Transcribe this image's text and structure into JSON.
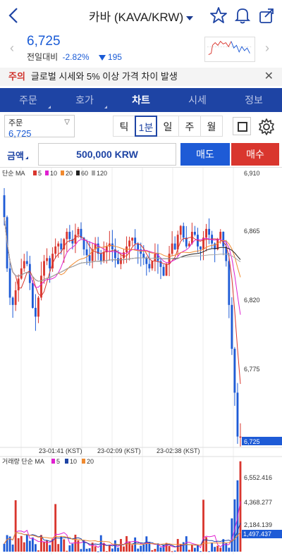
{
  "header": {
    "title": "카바 (KAVA/KRW)"
  },
  "quote": {
    "price": "6,725",
    "change_label": "전일대비",
    "change_pct": "-2.82%",
    "change_amount": "195"
  },
  "notice": {
    "label": "주의",
    "text": "글로벌 시세와 5% 이상 가격 차이 발생"
  },
  "tabs": [
    {
      "label": "주문"
    },
    {
      "label": "호가"
    },
    {
      "label": "차트"
    },
    {
      "label": "시세"
    },
    {
      "label": "정보"
    }
  ],
  "order_select": {
    "label": "주문",
    "value": "6,725"
  },
  "timeframes": [
    "틱",
    "1분",
    "일",
    "주",
    "월"
  ],
  "amount": {
    "label": "금액",
    "value": "500,000 KRW"
  },
  "buttons": {
    "sell": "매도",
    "buy": "매수"
  },
  "colors": {
    "up": "#d9362e",
    "down": "#1e5bd6",
    "brand": "#1e44a4"
  },
  "chart_data": [
    {
      "type": "candlestick",
      "legend": {
        "prefix": "단순 MA",
        "items": [
          {
            "name": "5",
            "color": "#d9362e"
          },
          {
            "name": "10",
            "color": "#e020d0"
          },
          {
            "name": "20",
            "color": "#f08a30"
          },
          {
            "name": "60",
            "color": "#222222"
          },
          {
            "name": "120",
            "color": "#aaaaaa"
          }
        ]
      },
      "y_ticks": [
        "6,910",
        "6,865",
        "6,820",
        "6,775",
        "6,725"
      ],
      "last_price_label": "6,725",
      "x_ticks": [
        "23-01:41 (KST)",
        "23-02:09 (KST)",
        "23-02:38 (KST)"
      ],
      "ylim": [
        6725,
        6910
      ]
    },
    {
      "type": "bar",
      "legend": {
        "prefix": "거래량 단순 MA",
        "items": [
          {
            "name": "5",
            "color": "#e020d0"
          },
          {
            "name": "10",
            "color": "#1e44a4"
          },
          {
            "name": "20",
            "color": "#f08a30"
          }
        ]
      },
      "y_ticks": [
        "6,552.416",
        "4,368.277",
        "2,184.139"
      ],
      "last_volume_label": "1,497.437"
    }
  ]
}
